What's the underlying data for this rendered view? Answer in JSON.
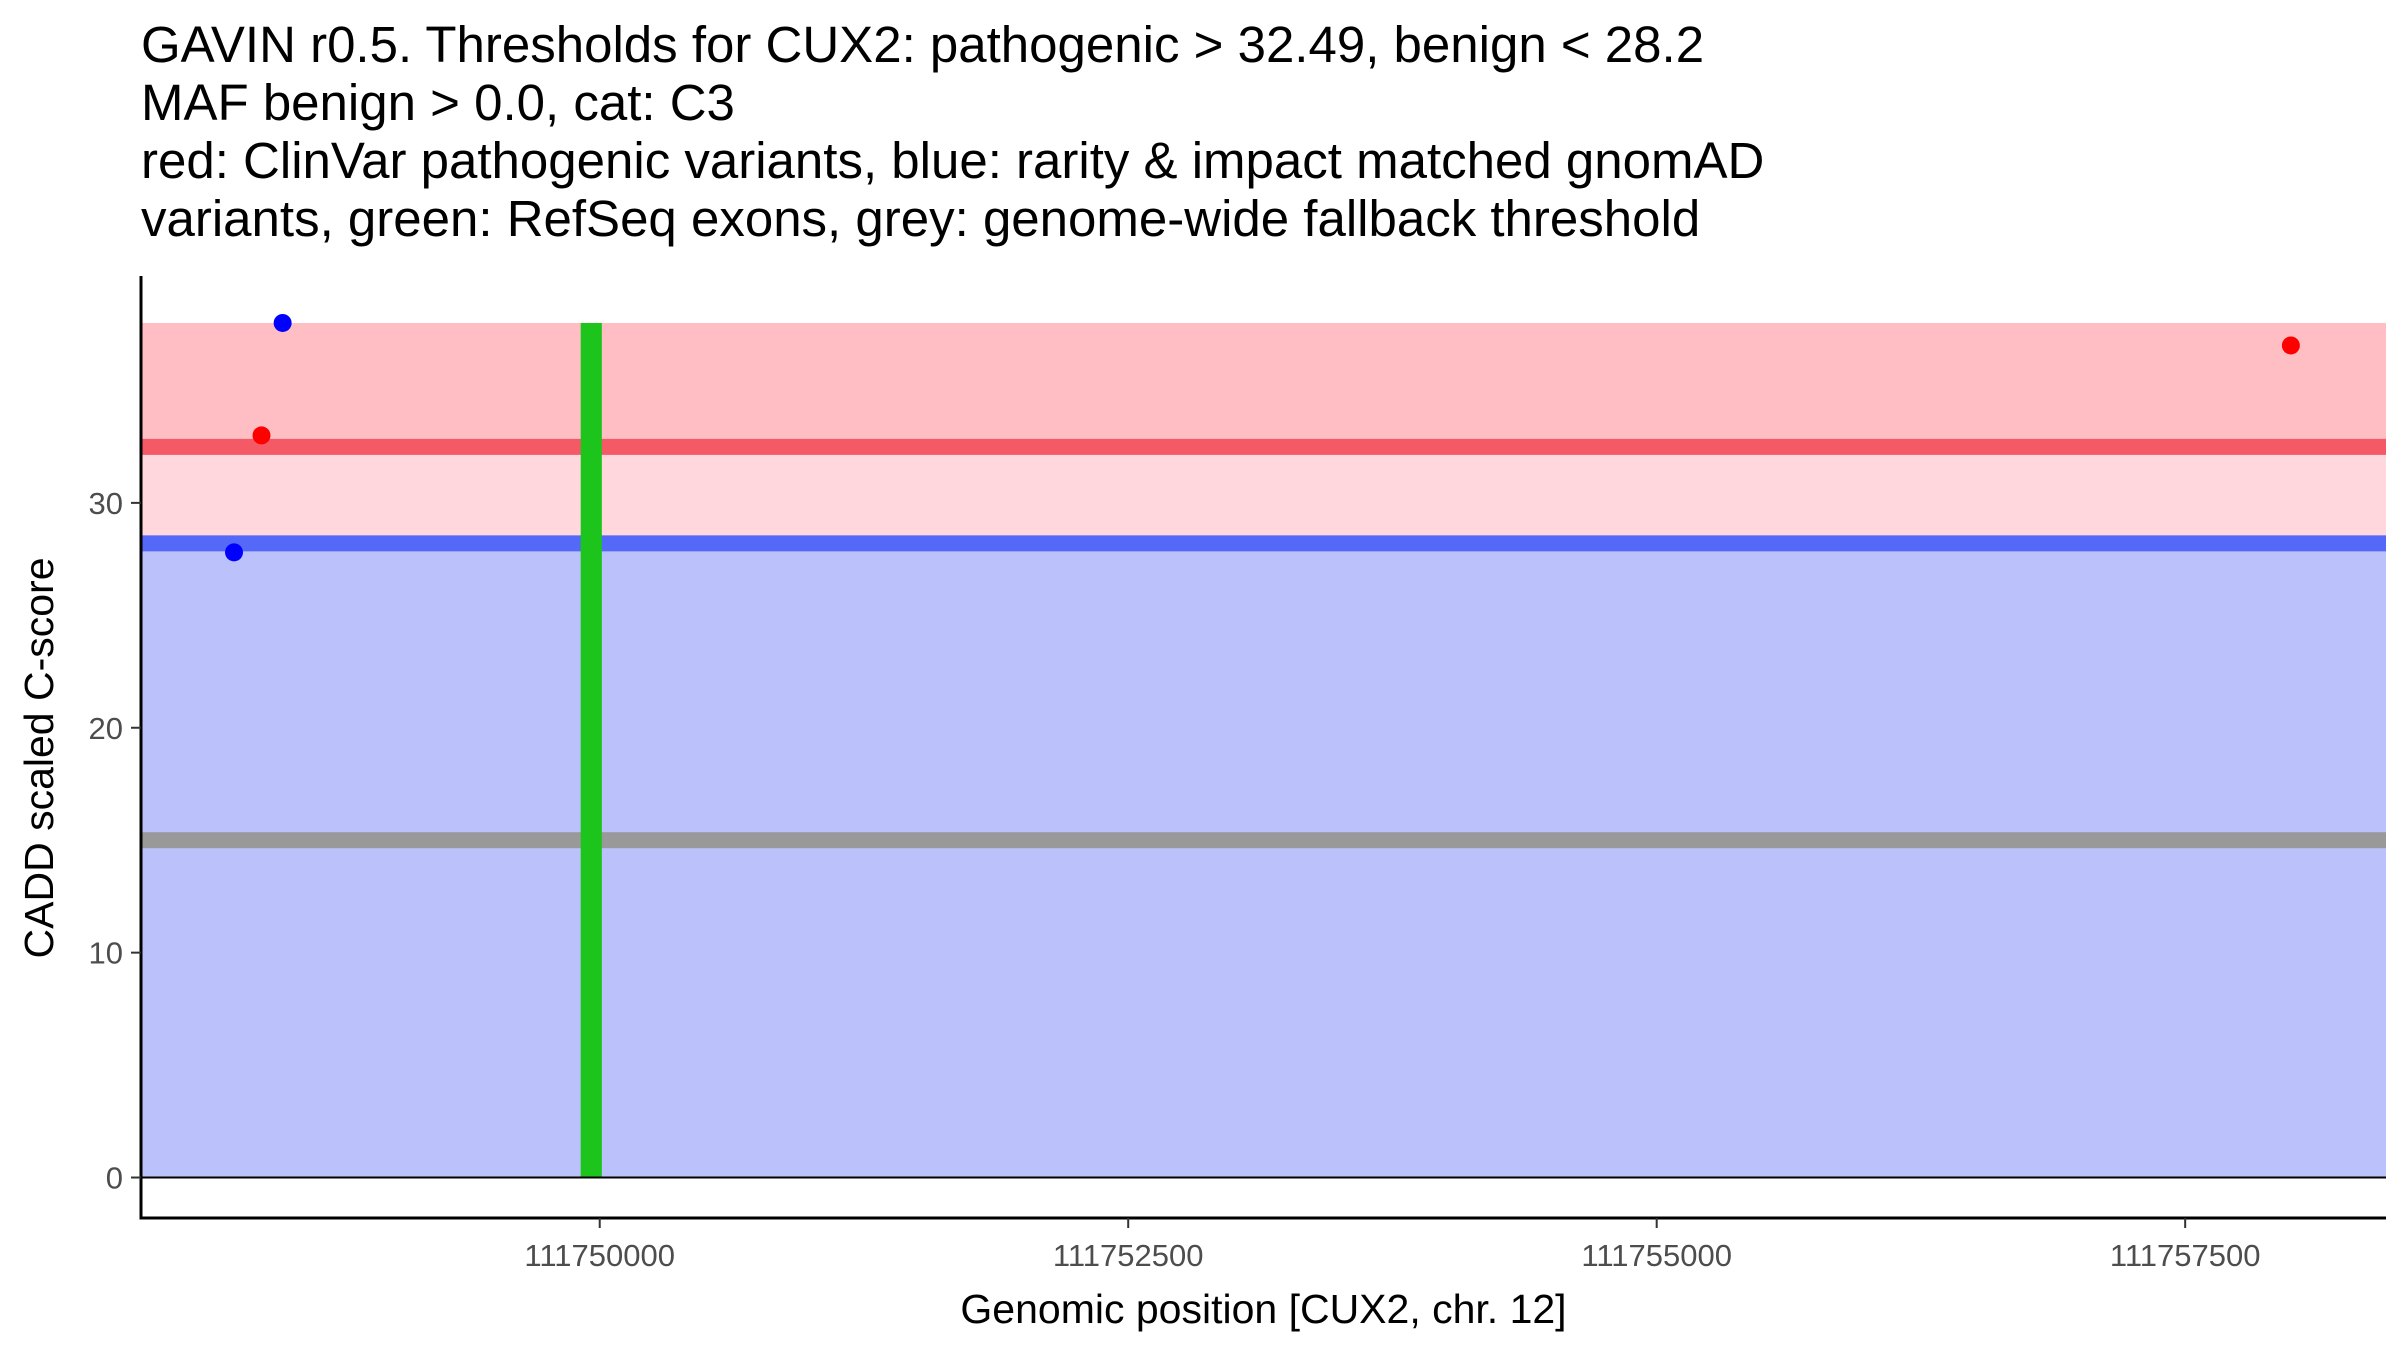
{
  "chart_data": {
    "type": "scatter",
    "title": [
      "GAVIN r0.5. Thresholds for CUX2: pathogenic > 32.49, benign < 28.2",
      "MAF benign > 0.0, cat: C3",
      "red: ClinVar pathogenic variants, blue: rarity & impact matched gnomAD",
      "variants, green: RefSeq exons, grey: genome-wide fallback threshold"
    ],
    "xlabel": "Genomic position [CUX2, chr. 12]",
    "ylabel": "CADD scaled C-score",
    "xlim": [
      111747830,
      111758450
    ],
    "ylim": [
      -1.8,
      40.0
    ],
    "x_ticks": [
      111750000,
      111752500,
      111755000,
      111757500
    ],
    "x_tick_labels": [
      "111750000",
      "111752500",
      "111755000",
      "111757500"
    ],
    "y_ticks": [
      0,
      10,
      20,
      30
    ],
    "y_tick_labels": [
      "0",
      "10",
      "20",
      "30"
    ],
    "grid": false,
    "bands": [
      {
        "name": "benign-zone",
        "y0": 0,
        "y1": 28.2,
        "color": "#bbc1fa"
      },
      {
        "name": "intermediate-zone",
        "y0": 28.2,
        "y1": 32.49,
        "color": "#ffd7dc"
      },
      {
        "name": "pathogenic-zone",
        "y0": 32.49,
        "y1": 38.0,
        "color": "#ffbec4"
      }
    ],
    "hlines": [
      {
        "name": "pathogenic-threshold",
        "y": 32.49,
        "color": "#f45a66"
      },
      {
        "name": "benign-threshold",
        "y": 28.2,
        "color": "#5469f7"
      },
      {
        "name": "fallback-threshold",
        "y": 15.0,
        "color": "#999999"
      }
    ],
    "exons": [
      {
        "name": "refseq-exon",
        "x0": 111749910,
        "x1": 111750010,
        "y0": 0,
        "y1": 38.0,
        "color": "#1cc41c"
      }
    ],
    "series": [
      {
        "name": "ClinVar pathogenic variants",
        "color": "#ff0000",
        "points": [
          {
            "x": 111748400,
            "y": 33.0
          },
          {
            "x": 111758000,
            "y": 37.0
          }
        ]
      },
      {
        "name": "rarity & impact matched gnomAD variants",
        "color": "#0000ff",
        "points": [
          {
            "x": 111748500,
            "y": 38.0
          },
          {
            "x": 111748270,
            "y": 27.8
          }
        ]
      }
    ]
  }
}
